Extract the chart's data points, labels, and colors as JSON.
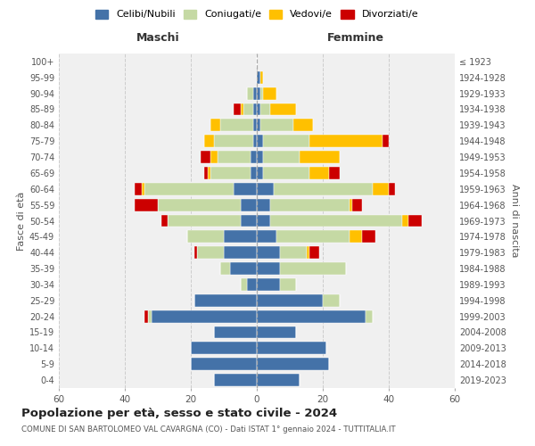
{
  "age_groups": [
    "0-4",
    "5-9",
    "10-14",
    "15-19",
    "20-24",
    "25-29",
    "30-34",
    "35-39",
    "40-44",
    "45-49",
    "50-54",
    "55-59",
    "60-64",
    "65-69",
    "70-74",
    "75-79",
    "80-84",
    "85-89",
    "90-94",
    "95-99",
    "100+"
  ],
  "birth_years": [
    "2019-2023",
    "2014-2018",
    "2009-2013",
    "2004-2008",
    "1999-2003",
    "1994-1998",
    "1989-1993",
    "1984-1988",
    "1979-1983",
    "1974-1978",
    "1969-1973",
    "1964-1968",
    "1959-1963",
    "1954-1958",
    "1949-1953",
    "1944-1948",
    "1939-1943",
    "1934-1938",
    "1929-1933",
    "1924-1928",
    "≤ 1923"
  ],
  "maschi": {
    "celibi": [
      13,
      20,
      20,
      13,
      32,
      19,
      3,
      8,
      10,
      10,
      5,
      5,
      7,
      2,
      2,
      1,
      1,
      1,
      1,
      0,
      0
    ],
    "coniugati": [
      0,
      0,
      0,
      0,
      1,
      0,
      2,
      3,
      8,
      11,
      22,
      25,
      27,
      12,
      10,
      12,
      10,
      3,
      2,
      0,
      0
    ],
    "vedovi": [
      0,
      0,
      0,
      0,
      0,
      0,
      0,
      0,
      0,
      0,
      0,
      0,
      1,
      1,
      2,
      3,
      3,
      1,
      0,
      0,
      0
    ],
    "divorziati": [
      0,
      0,
      0,
      0,
      1,
      0,
      0,
      0,
      1,
      0,
      2,
      7,
      2,
      1,
      3,
      0,
      0,
      2,
      0,
      0,
      0
    ]
  },
  "femmine": {
    "nubili": [
      13,
      22,
      21,
      12,
      33,
      20,
      7,
      7,
      7,
      6,
      4,
      4,
      5,
      2,
      2,
      2,
      1,
      1,
      1,
      1,
      0
    ],
    "coniugate": [
      0,
      0,
      0,
      0,
      2,
      5,
      5,
      20,
      8,
      22,
      40,
      24,
      30,
      14,
      11,
      14,
      10,
      3,
      1,
      0,
      0
    ],
    "vedove": [
      0,
      0,
      0,
      0,
      0,
      0,
      0,
      0,
      1,
      4,
      2,
      1,
      5,
      6,
      12,
      22,
      6,
      8,
      4,
      1,
      0
    ],
    "divorziate": [
      0,
      0,
      0,
      0,
      0,
      0,
      0,
      0,
      3,
      4,
      4,
      3,
      2,
      3,
      0,
      2,
      0,
      0,
      0,
      0,
      0
    ]
  },
  "colors": {
    "celibi": "#4472a8",
    "coniugati": "#c5d9a4",
    "vedovi": "#ffc000",
    "divorziati": "#cc0000"
  },
  "legend_labels": [
    "Celibi/Nubili",
    "Coniugati/e",
    "Vedovi/e",
    "Divorziati/e"
  ],
  "title": "Popolazione per età, sesso e stato civile - 2024",
  "subtitle": "COMUNE DI SAN BARTOLOMEO VAL CAVARGNA (CO) - Dati ISTAT 1° gennaio 2024 - TUTTITALIA.IT",
  "xlabel_left": "Maschi",
  "xlabel_right": "Femmine",
  "ylabel_left": "Fasce di età",
  "ylabel_right": "Anni di nascita",
  "xlim": 60,
  "bg_color": "#f0f0f0",
  "grid_color": "#cccccc"
}
